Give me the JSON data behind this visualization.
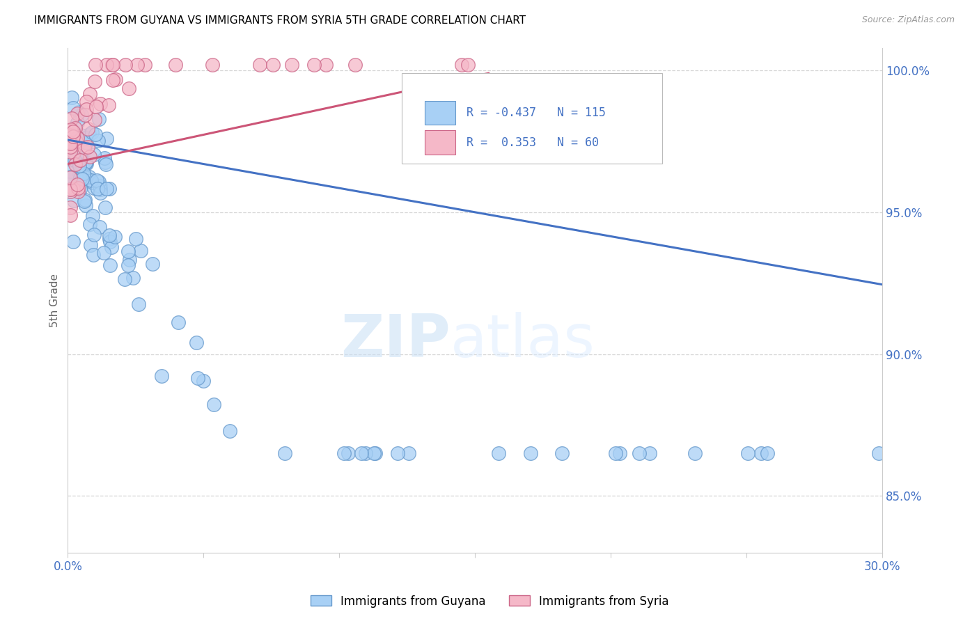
{
  "title": "IMMIGRANTS FROM GUYANA VS IMMIGRANTS FROM SYRIA 5TH GRADE CORRELATION CHART",
  "source": "Source: ZipAtlas.com",
  "ylabel": "5th Grade",
  "x_min": 0.0,
  "x_max": 0.3,
  "y_min": 0.83,
  "y_max": 1.008,
  "x_ticks": [
    0.0,
    0.05,
    0.1,
    0.15,
    0.2,
    0.25,
    0.3
  ],
  "x_tick_labels": [
    "0.0%",
    "",
    "",
    "",
    "",
    "",
    "30.0%"
  ],
  "y_ticks": [
    0.85,
    0.9,
    0.95,
    1.0
  ],
  "y_tick_labels": [
    "85.0%",
    "90.0%",
    "95.0%",
    "100.0%"
  ],
  "guyana_color": "#A8D0F5",
  "syria_color": "#F5B8C8",
  "guyana_edge": "#6699CC",
  "syria_edge": "#CC6688",
  "blue_line_color": "#4472C4",
  "pink_line_color": "#CC5577",
  "R_guyana": -0.437,
  "N_guyana": 115,
  "R_syria": 0.353,
  "N_syria": 60,
  "watermark_zip": "ZIP",
  "watermark_atlas": "atlas",
  "grid_color": "#CCCCCC",
  "guyana_label": "Immigrants from Guyana",
  "syria_label": "Immigrants from Syria",
  "blue_trend_x": [
    0.0,
    0.3
  ],
  "blue_trend_y": [
    0.9755,
    0.9245
  ],
  "pink_trend_x": [
    0.0,
    0.155
  ],
  "pink_trend_y": [
    0.967,
    0.999
  ]
}
